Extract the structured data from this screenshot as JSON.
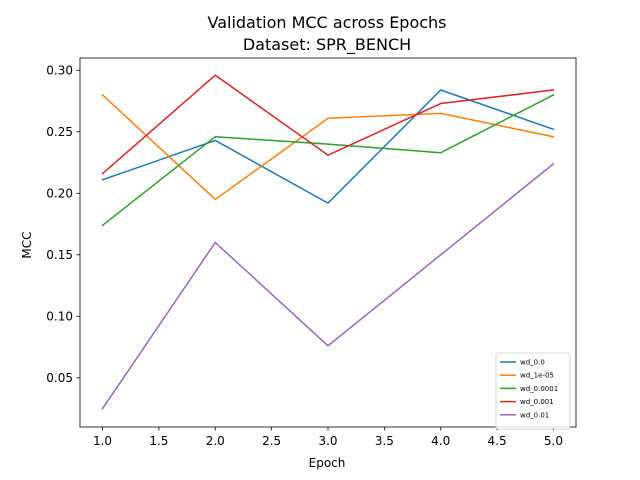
{
  "chart_data": {
    "type": "line",
    "title": "Validation MCC across Epochs",
    "subtitle": "Dataset: SPR_BENCH",
    "xlabel": "Epoch",
    "ylabel": "MCC",
    "xlim": [
      0.8,
      5.2
    ],
    "ylim": [
      0.01,
      0.31
    ],
    "xticks": [
      1.0,
      1.5,
      2.0,
      2.5,
      3.0,
      3.5,
      4.0,
      4.5,
      5.0
    ],
    "xtick_labels": [
      "1.0",
      "1.5",
      "2.0",
      "2.5",
      "3.0",
      "3.5",
      "4.0",
      "4.5",
      "5.0"
    ],
    "yticks": [
      0.05,
      0.1,
      0.15,
      0.2,
      0.25,
      0.3
    ],
    "ytick_labels": [
      "0.05",
      "0.10",
      "0.15",
      "0.20",
      "0.25",
      "0.30"
    ],
    "grid": false,
    "legend_position": "lower-right",
    "x": [
      1,
      2,
      3,
      4,
      5
    ],
    "series": [
      {
        "name": "wd_0.0",
        "color": "#1f77b4",
        "values": [
          0.211,
          0.243,
          0.192,
          0.284,
          0.252
        ]
      },
      {
        "name": "wd_1e-05",
        "color": "#ff7f0e",
        "values": [
          0.28,
          0.195,
          0.261,
          0.265,
          0.246
        ]
      },
      {
        "name": "wd_0.0001",
        "color": "#2ca02c",
        "values": [
          0.174,
          0.246,
          0.24,
          0.233,
          0.28
        ]
      },
      {
        "name": "wd_0.001",
        "color": "#d62728",
        "values": [
          0.216,
          0.296,
          0.231,
          0.273,
          0.284
        ]
      },
      {
        "name": "wd_0.01",
        "color": "#9467bd",
        "values": [
          0.025,
          0.16,
          0.076,
          0.15,
          0.224
        ]
      }
    ]
  }
}
